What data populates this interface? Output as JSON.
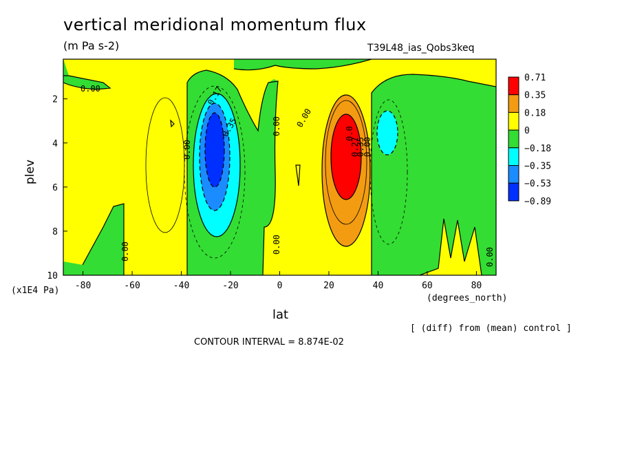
{
  "figure": {
    "title": "vertical meridional momentum flux",
    "units": "(m Pa s-2)",
    "run_id": "T39L48_ias_Qobs3keq",
    "y_unit": "(x1E4 Pa)",
    "x_unit": "(degrees_north)",
    "diff_note": "[ (diff) from (mean) control ]",
    "contour_interval": "CONTOUR INTERVAL = 8.874E-02"
  },
  "chart_data": {
    "type": "heatmap",
    "title": "vertical meridional momentum flux",
    "xlabel": "lat",
    "ylabel": "plev",
    "xlim": [
      -88,
      88
    ],
    "ylim": [
      10,
      0.2
    ],
    "x_ticks": [
      -80,
      -60,
      -40,
      -20,
      0,
      20,
      40,
      60,
      80
    ],
    "x_tick_labels": [
      "-80",
      "-60",
      "-40",
      "-20",
      "0",
      "20",
      "40",
      "60",
      "80"
    ],
    "y_ticks": [
      2,
      4,
      6,
      8,
      10
    ],
    "y_tick_labels": [
      "2",
      "4",
      "6",
      "8",
      "10"
    ],
    "colorbar": {
      "labels": [
        "0.71",
        "0.35",
        "0.18",
        "0",
        "−0.18",
        "−0.35",
        "−0.53",
        "−0.89"
      ],
      "colors": [
        "#ff0000",
        "#f39c12",
        "#ffff00",
        "#33dd33",
        "#00ffff",
        "#1a8cff",
        "#0030ff"
      ]
    },
    "contour_labels": [
      "0.00",
      "0.00",
      "0.00",
      "0.00",
      "0.00",
      "0.00",
      "0.00",
      "0.00",
      "-0.17",
      "-0.35",
      "0.27",
      "0.35",
      "0.0"
    ],
    "features": [
      {
        "name": "negative-core",
        "lat": -27,
        "plev": 4.0,
        "value": -0.89
      },
      {
        "name": "positive-core",
        "lat": 28,
        "plev": 4.6,
        "value": 0.71
      },
      {
        "name": "weak-negative",
        "lat": 45,
        "plev": 3.2,
        "value": -0.35
      }
    ],
    "grid": false,
    "legend_placement": "right"
  }
}
